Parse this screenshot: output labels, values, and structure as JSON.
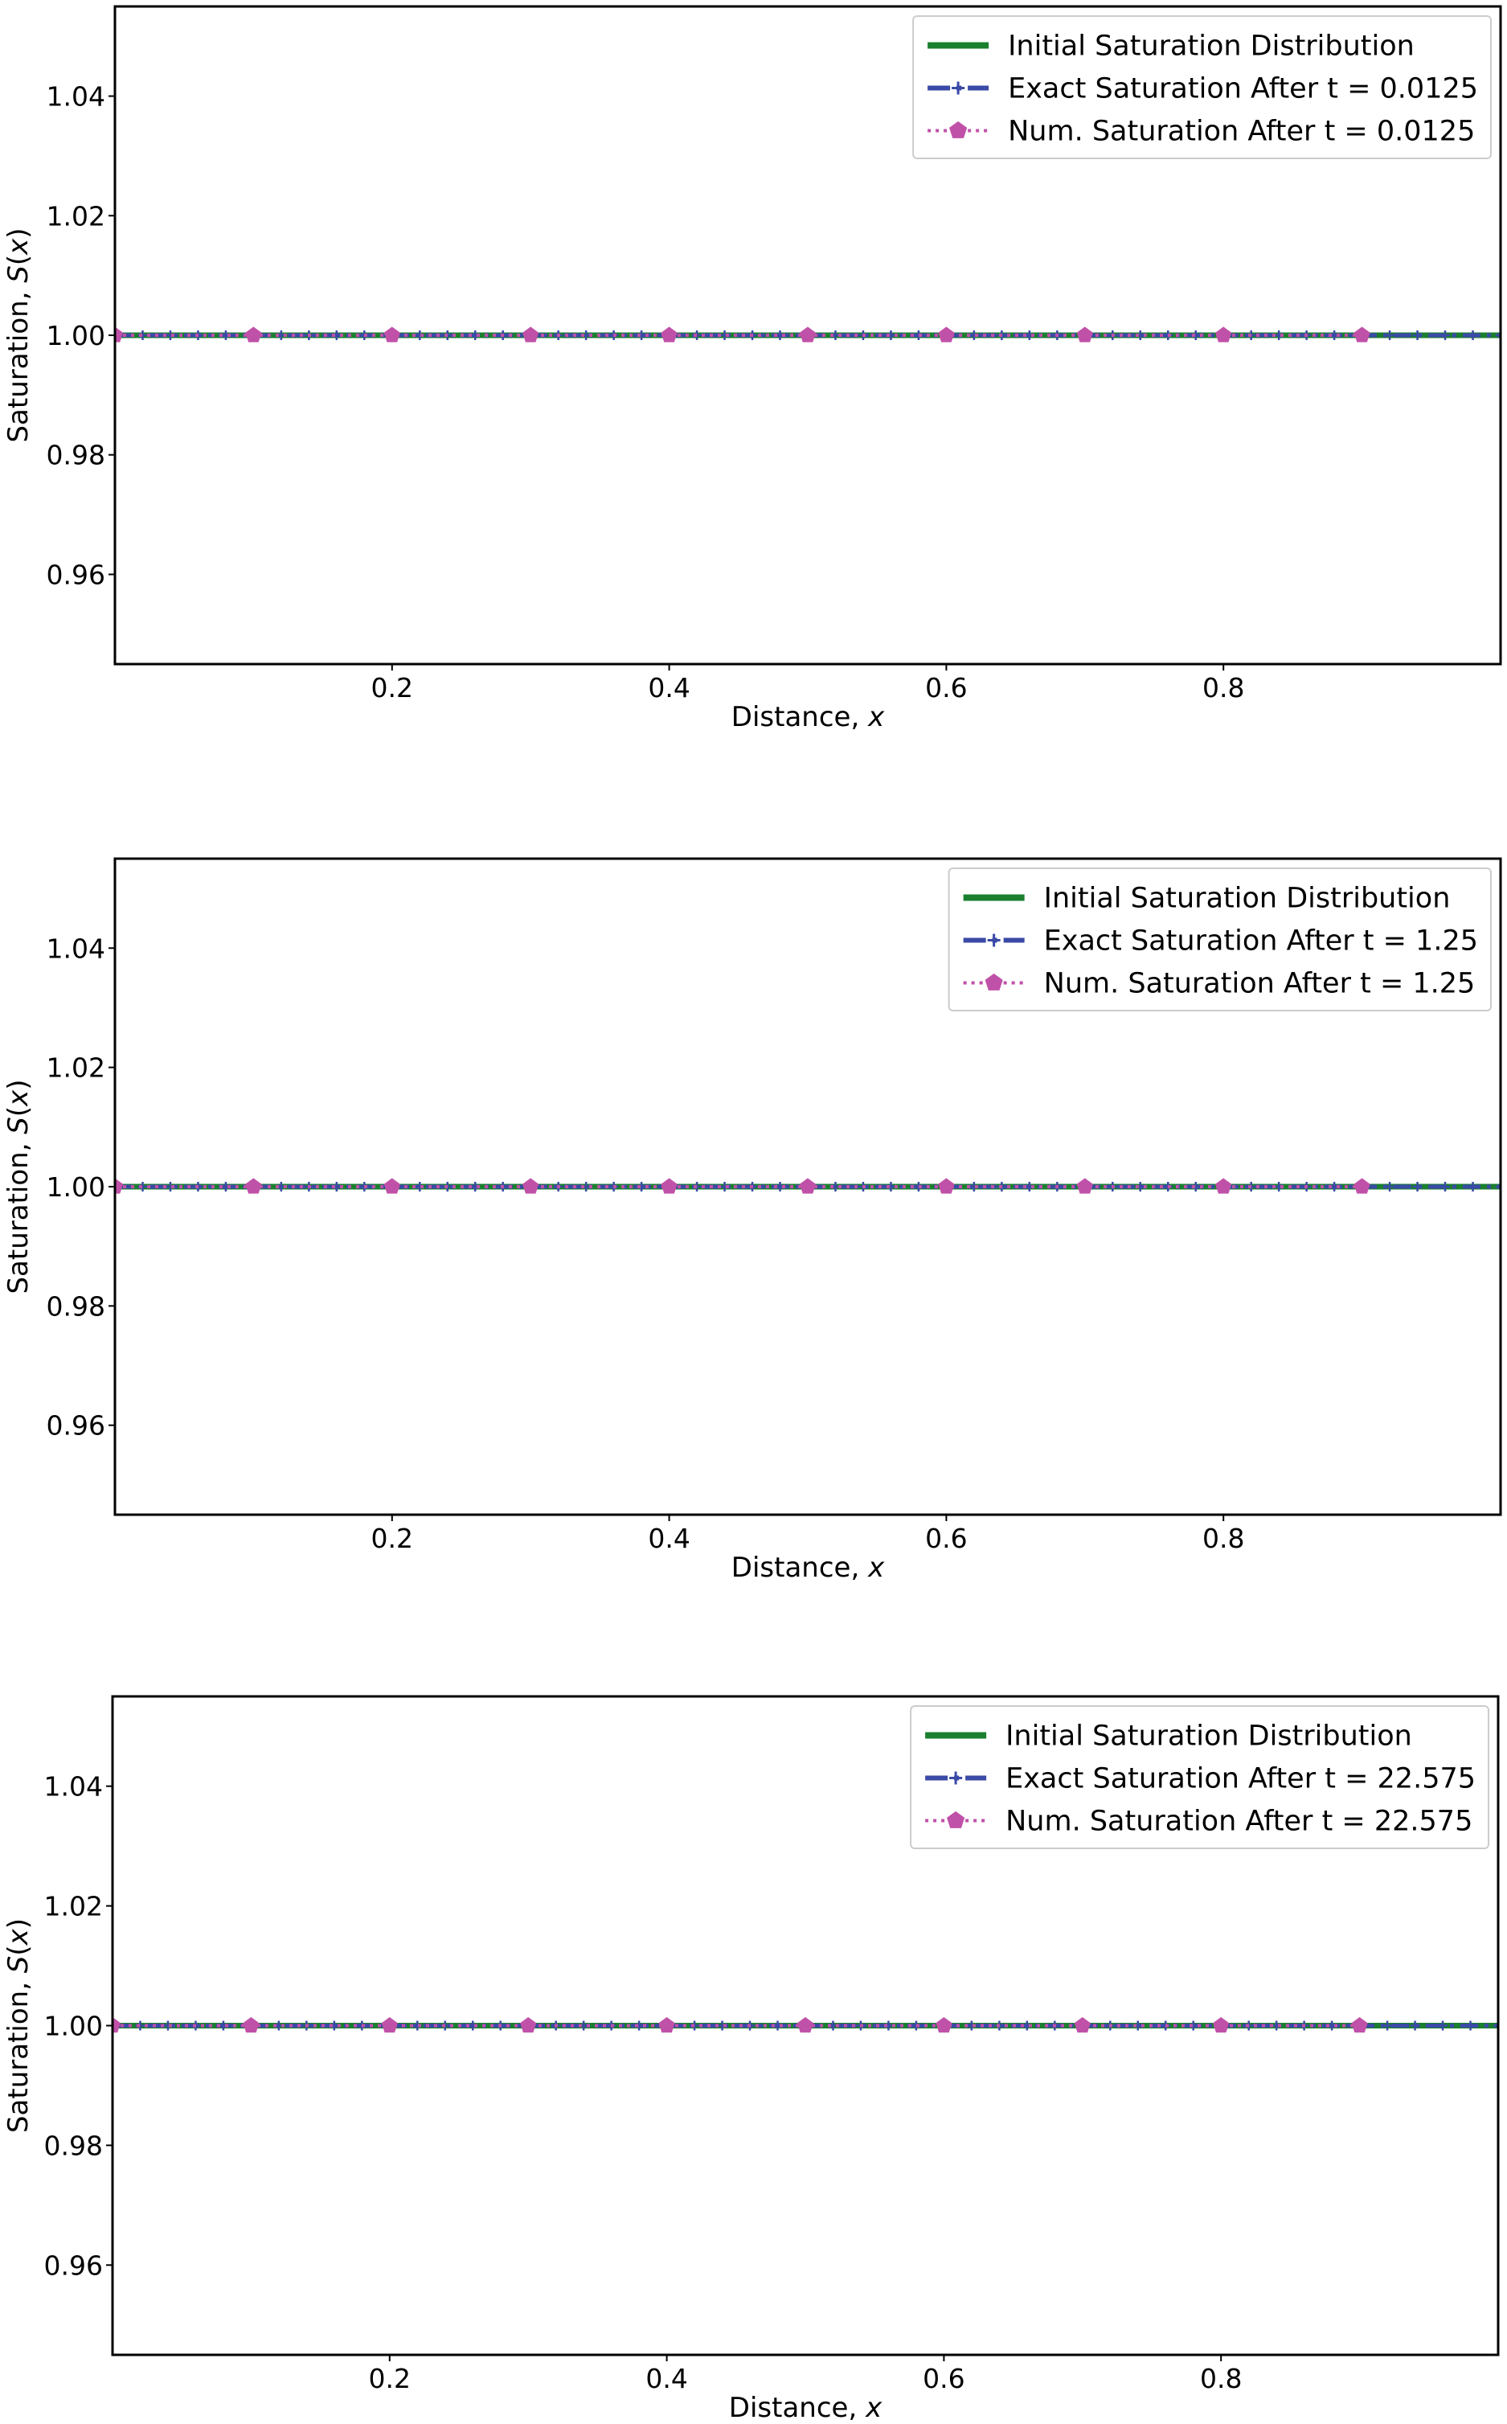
{
  "chart_data": [
    {
      "type": "line",
      "title": "",
      "xlabel": "Distance, x",
      "ylabel": "Saturation, S(x)",
      "xlim": [
        0.0,
        1.0
      ],
      "ylim": [
        0.945,
        1.055
      ],
      "xticks": [
        0.2,
        0.4,
        0.6,
        0.8
      ],
      "xtick_labels": [
        "0.2",
        "0.4",
        "0.6",
        "0.8"
      ],
      "yticks": [
        0.96,
        0.98,
        1.0,
        1.02,
        1.04
      ],
      "ytick_labels": [
        "0.96",
        "0.98",
        "1.00",
        "1.02",
        "1.04"
      ],
      "legend_position": "top-right",
      "grid": false,
      "series": [
        {
          "name": "Initial Saturation Distribution",
          "style": "solid",
          "color": "#1a7f2e",
          "x": [
            0.0,
            1.0
          ],
          "y": [
            1.0,
            1.0
          ]
        },
        {
          "name": "Exact Saturation After t = 0.0125",
          "style": "dashdot",
          "marker": "plus",
          "color": "#3a4aa6",
          "x": [
            0.0,
            1.0
          ],
          "y": [
            1.0,
            1.0
          ]
        },
        {
          "name": "Num. Saturation After t = 0.0125",
          "style": "dotted",
          "marker": "pentagon",
          "color": "#c051a8",
          "x": [
            0.0,
            0.1,
            0.2,
            0.3,
            0.4,
            0.5,
            0.6,
            0.7,
            0.8,
            0.9
          ],
          "y": [
            1.0,
            1.0,
            1.0,
            1.0,
            1.0,
            1.0,
            1.0,
            1.0,
            1.0,
            1.0
          ]
        }
      ]
    },
    {
      "type": "line",
      "title": "",
      "xlabel": "Distance, x",
      "ylabel": "Saturation, S(x)",
      "xlim": [
        0.0,
        1.0
      ],
      "ylim": [
        0.945,
        1.055
      ],
      "xticks": [
        0.2,
        0.4,
        0.6,
        0.8
      ],
      "xtick_labels": [
        "0.2",
        "0.4",
        "0.6",
        "0.8"
      ],
      "yticks": [
        0.96,
        0.98,
        1.0,
        1.02,
        1.04
      ],
      "ytick_labels": [
        "0.96",
        "0.98",
        "1.00",
        "1.02",
        "1.04"
      ],
      "legend_position": "top-right",
      "grid": false,
      "series": [
        {
          "name": "Initial Saturation Distribution",
          "style": "solid",
          "color": "#1a7f2e",
          "x": [
            0.0,
            1.0
          ],
          "y": [
            1.0,
            1.0
          ]
        },
        {
          "name": "Exact Saturation After t = 1.25",
          "style": "dashdot",
          "marker": "plus",
          "color": "#3a4aa6",
          "x": [
            0.0,
            1.0
          ],
          "y": [
            1.0,
            1.0
          ]
        },
        {
          "name": "Num. Saturation After t = 1.25",
          "style": "dotted",
          "marker": "pentagon",
          "color": "#c051a8",
          "x": [
            0.0,
            0.1,
            0.2,
            0.3,
            0.4,
            0.5,
            0.6,
            0.7,
            0.8,
            0.9
          ],
          "y": [
            1.0,
            1.0,
            1.0,
            1.0,
            1.0,
            1.0,
            1.0,
            1.0,
            1.0,
            1.0
          ]
        }
      ]
    },
    {
      "type": "line",
      "title": "",
      "xlabel": "Distance, x",
      "ylabel": "Saturation, S(x)",
      "xlim": [
        0.0,
        1.0
      ],
      "ylim": [
        0.945,
        1.055
      ],
      "xticks": [
        0.2,
        0.4,
        0.6,
        0.8
      ],
      "xtick_labels": [
        "0.2",
        "0.4",
        "0.6",
        "0.8"
      ],
      "yticks": [
        0.96,
        0.98,
        1.0,
        1.02,
        1.04
      ],
      "ytick_labels": [
        "0.96",
        "0.98",
        "1.00",
        "1.02",
        "1.04"
      ],
      "legend_position": "top-right",
      "grid": false,
      "series": [
        {
          "name": "Initial Saturation Distribution",
          "style": "solid",
          "color": "#1a7f2e",
          "x": [
            0.0,
            1.0
          ],
          "y": [
            1.0,
            1.0
          ]
        },
        {
          "name": "Exact Saturation After t = 22.575",
          "style": "dashdot",
          "marker": "plus",
          "color": "#3a4aa6",
          "x": [
            0.0,
            1.0
          ],
          "y": [
            1.0,
            1.0
          ]
        },
        {
          "name": "Num. Saturation After t = 22.575",
          "style": "dotted",
          "marker": "pentagon",
          "color": "#c051a8",
          "x": [
            0.0,
            0.1,
            0.2,
            0.3,
            0.4,
            0.5,
            0.6,
            0.7,
            0.8,
            0.9
          ],
          "y": [
            1.0,
            1.0,
            1.0,
            1.0,
            1.0,
            1.0,
            1.0,
            1.0,
            1.0,
            1.0
          ]
        }
      ]
    }
  ]
}
